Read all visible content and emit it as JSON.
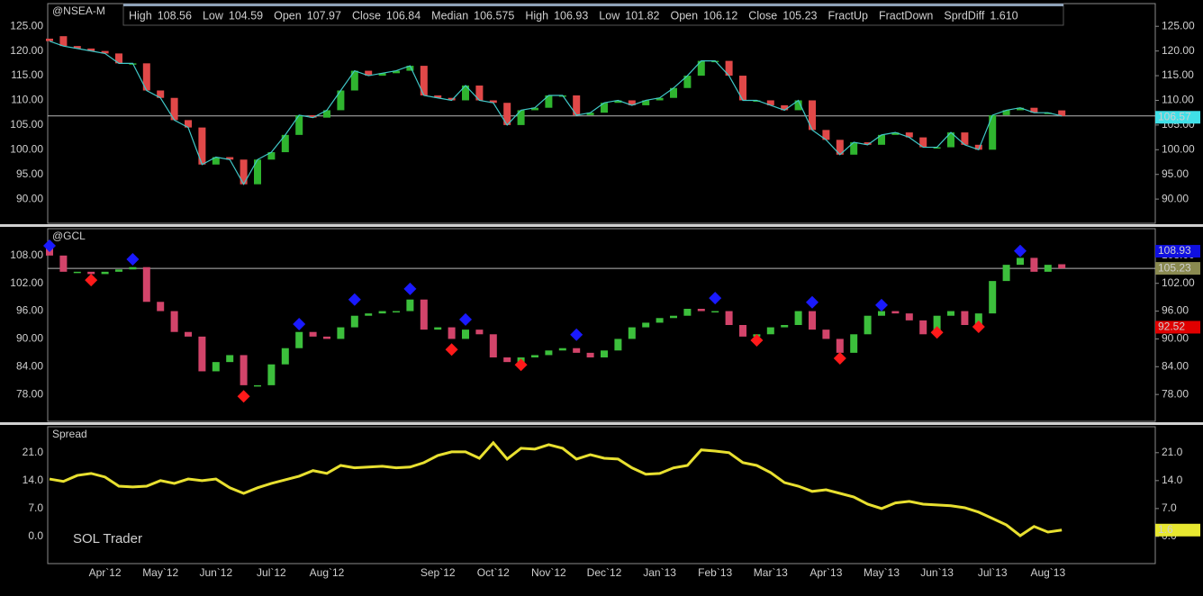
{
  "info_bar": [
    {
      "label": "High",
      "value": "108.56",
      "color": "#ffffff"
    },
    {
      "label": "Low",
      "value": "104.59",
      "color": "#ffffff"
    },
    {
      "label": "Open",
      "value": "107.97",
      "color": "#ffffff"
    },
    {
      "label": "Close",
      "value": "106.84",
      "color": "#ffffff"
    },
    {
      "label": "Median",
      "value": "106.575",
      "color": "#e0703a"
    },
    {
      "label": "High",
      "value": "106.93",
      "color": "#a08c72"
    },
    {
      "label": "Low",
      "value": "101.82",
      "color": "#a08c72"
    },
    {
      "label": "Open",
      "value": "106.12",
      "color": "#a08c72"
    },
    {
      "label": "Close",
      "value": "105.23",
      "color": "#a08c72"
    }
  ],
  "info_bar_end": [
    {
      "label": "SprdDiff",
      "value": "1.610",
      "color": "#f0e040"
    }
  ],
  "chart_data": [
    {
      "type": "candlestick",
      "label": "@NSEA-M",
      "up_color": "#2fb52f",
      "down_color": "#e04848",
      "line_color": "#40c8c8",
      "open": [
        122.5,
        123,
        121,
        120.5,
        120,
        119.5,
        117.5,
        117.5,
        112,
        110.5,
        106,
        104.5,
        97,
        98.5,
        98,
        93,
        98,
        99.5,
        103,
        107,
        106.5,
        108,
        112,
        116,
        115,
        115.5,
        116,
        117,
        111,
        110.5,
        110,
        113,
        110,
        109.5,
        105,
        108,
        108.5,
        111,
        111,
        107,
        107.5,
        109.5,
        110,
        109,
        110,
        110.5,
        112.5,
        115,
        118,
        118,
        115,
        110,
        110,
        109,
        108,
        110,
        104,
        102,
        99,
        101.5,
        101,
        103,
        103.5,
        102.5,
        100.5,
        100.5,
        103.5,
        101,
        100,
        107,
        108,
        108.5,
        107.5,
        107.97
      ],
      "close": [
        122,
        121,
        120.5,
        120,
        119.5,
        117.5,
        117.5,
        112,
        110.5,
        106,
        104.5,
        97,
        98.5,
        98,
        93,
        98,
        99.5,
        103,
        107,
        106.5,
        108,
        112,
        116,
        115,
        115.5,
        116,
        117,
        111,
        110.5,
        110,
        113,
        110,
        109.5,
        105,
        108,
        108.5,
        111,
        111,
        107,
        107.5,
        109.5,
        110,
        109,
        110,
        110.5,
        112.5,
        115,
        118,
        118,
        115,
        110,
        110,
        109,
        108,
        110,
        104,
        102,
        99,
        101.5,
        101,
        103,
        103.5,
        102.5,
        100.5,
        100.5,
        103.5,
        101,
        100,
        107,
        108,
        108.5,
        107.5,
        107.5,
        106.84
      ],
      "ylim": [
        85.1,
        129.6
      ],
      "yticks": [
        {
          "value": 90,
          "label": "90.00"
        },
        {
          "value": 95,
          "label": "95.00"
        },
        {
          "value": 100,
          "label": "100.00"
        },
        {
          "value": 105,
          "label": "105.00"
        },
        {
          "value": 110,
          "label": "110.00"
        },
        {
          "value": 115,
          "label": "115.00"
        },
        {
          "value": 120,
          "label": "120.00"
        },
        {
          "value": 125,
          "label": "125.00"
        }
      ],
      "price_tags": [
        {
          "value": 106.57,
          "color": "#40e0e8"
        }
      ]
    },
    {
      "type": "candlestick",
      "label": "@GCL",
      "up_color": "#3cbf3c",
      "down_color": "#d2446a",
      "open": [
        110.5,
        108,
        104.5,
        104.5,
        104,
        104.5,
        105,
        105.5,
        98,
        96,
        91.5,
        90.5,
        83,
        85,
        86.5,
        80,
        80,
        84.5,
        88,
        91.5,
        90.5,
        90,
        92.5,
        95,
        95.5,
        96,
        96,
        98.5,
        92,
        92.5,
        90,
        92,
        91,
        86,
        85,
        86,
        86.5,
        87.5,
        88,
        87,
        86,
        87.5,
        90,
        92.5,
        93.5,
        94.5,
        95,
        96.5,
        96,
        96,
        93,
        90.5,
        91,
        92.5,
        93,
        96,
        92,
        90,
        87,
        91,
        95,
        96,
        95.5,
        94,
        91,
        95,
        96,
        93,
        95.5,
        102.5,
        106,
        107.5,
        104.5,
        106.12
      ],
      "close": [
        108,
        104.5,
        104.5,
        104,
        104.5,
        105,
        105.5,
        98,
        96,
        91.5,
        90.5,
        83,
        85,
        86.5,
        80,
        80,
        84.5,
        88,
        91.5,
        90.5,
        90,
        92.5,
        95,
        95.5,
        96,
        96,
        98.5,
        92,
        92.5,
        90,
        92,
        91,
        86,
        85,
        86,
        86.5,
        87.5,
        88,
        87,
        86,
        87.5,
        90,
        92.5,
        93.5,
        94.5,
        95,
        96.5,
        96,
        96,
        93,
        90.5,
        91,
        92.5,
        93,
        96,
        92,
        90,
        87,
        91,
        95,
        96,
        95.5,
        94,
        91,
        95,
        96,
        93,
        95.5,
        102.5,
        106,
        107.5,
        104.5,
        106,
        105.23
      ],
      "series": [
        {
          "name": "FractUp",
          "color": "#1a1aff",
          "x": [
            0,
            6,
            18,
            22,
            26,
            30,
            38,
            48,
            55,
            60,
            70
          ],
          "values": [
            110.1,
            107.2,
            93.2,
            98.5,
            100.8,
            94.2,
            90.9,
            98.8,
            97.9,
            97.3,
            109
          ]
        },
        {
          "name": "FractDown",
          "color": "#ff1a1a",
          "x": [
            3,
            14,
            29,
            34,
            51,
            57,
            64,
            67
          ],
          "values": [
            102.7,
            77.6,
            87.7,
            84.4,
            89.7,
            85.8,
            91.4,
            92.6
          ]
        }
      ],
      "ylim": [
        72.2,
        113.8
      ],
      "yticks": [
        {
          "value": 78,
          "label": "78.00"
        },
        {
          "value": 84,
          "label": "84.00"
        },
        {
          "value": 90,
          "label": "90.00"
        },
        {
          "value": 96,
          "label": "96.00"
        },
        {
          "value": 102,
          "label": "102.00"
        },
        {
          "value": 108,
          "label": "108.00"
        }
      ],
      "price_tags": [
        {
          "value": 108.93,
          "color": "#1010e0"
        },
        {
          "value": 105.23,
          "color": "#8a8a50"
        },
        {
          "value": 92.52,
          "color": "#e00000"
        }
      ]
    },
    {
      "type": "line",
      "label": "Spread",
      "color": "#e8e030",
      "annotation": "SOL Trader",
      "categories": [
        null,
        null,
        null,
        null,
        "Apr`12",
        null,
        null,
        null,
        "May`12",
        null,
        null,
        null,
        "Jun`12",
        null,
        null,
        null,
        "Jul`12",
        null,
        null,
        null,
        "Aug`12",
        null,
        null,
        null,
        null,
        null,
        null,
        null,
        "Sep`12",
        null,
        null,
        null,
        "Oct`12",
        null,
        null,
        null,
        "Nov`12",
        null,
        null,
        null,
        "Dec`12",
        null,
        null,
        null,
        "Jan`13",
        null,
        null,
        null,
        "Feb`13",
        null,
        null,
        null,
        "Mar`13",
        null,
        null,
        null,
        "Apr`13",
        null,
        null,
        null,
        "May`13",
        null,
        null,
        null,
        "Jun`13",
        null,
        null,
        null,
        "Jul`13",
        null,
        null,
        null,
        "Aug`13",
        null
      ],
      "values": [
        14.4,
        13.8,
        15.3,
        15.8,
        14.9,
        12.6,
        12.4,
        12.6,
        14,
        13.3,
        14.4,
        14,
        14.4,
        12.2,
        10.8,
        12.2,
        13.3,
        14.2,
        15.1,
        16.5,
        15.8,
        17.8,
        17.2,
        17.4,
        17.6,
        17.2,
        17.4,
        18.5,
        20.3,
        21.2,
        21.2,
        19.6,
        23.5,
        19.4,
        22.1,
        21.9,
        23,
        22.1,
        19.4,
        20.5,
        19.6,
        19.4,
        17.2,
        15.6,
        15.8,
        17.2,
        17.8,
        21.7,
        21.4,
        21,
        18.5,
        17.8,
        16,
        13.5,
        12.6,
        11.3,
        11.7,
        10.8,
        9.9,
        8.1,
        7,
        8.4,
        8.8,
        8.1,
        7.9,
        7.7,
        7.2,
        6.1,
        4.5,
        2.9,
        0.2,
        2.5,
        1.1,
        1.6
      ],
      "ylim": [
        -6.8,
        27.5
      ],
      "yticks": [
        {
          "value": 0,
          "label": "0.0"
        },
        {
          "value": 7,
          "label": "7.0"
        },
        {
          "value": 14,
          "label": "14.0"
        },
        {
          "value": 21,
          "label": "21.0"
        }
      ],
      "price_tags": [
        {
          "value": 1.6,
          "color": "#e8e830"
        }
      ]
    }
  ]
}
